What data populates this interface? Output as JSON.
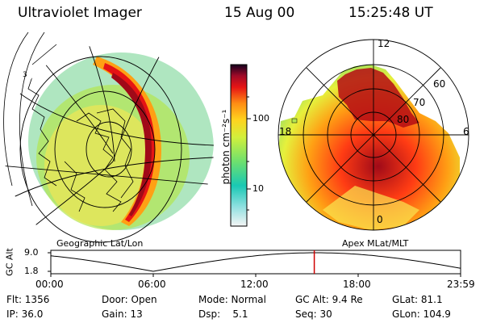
{
  "header": {
    "instrument": "Ultraviolet Imager",
    "date": "15 Aug 00",
    "time": "15:25:48 UT"
  },
  "colorbar": {
    "unit_label": "photon cm⁻²s⁻¹",
    "ticks": [
      "100",
      "10"
    ]
  },
  "polar_plot": {
    "mlt_labels": [
      "12",
      "18",
      "6",
      "0"
    ],
    "mlat_labels": [
      "60",
      "70",
      "80"
    ]
  },
  "left_map": {
    "caption": "Geographic Lat/Lon"
  },
  "right_map": {
    "caption": "Apex MLat/MLT"
  },
  "altitude_plot": {
    "ylabel": "GC Alt",
    "yticks": [
      "9.0",
      "1.8"
    ],
    "xticks": [
      "00:00",
      "06:00",
      "12:00",
      "18:00",
      "23:59"
    ],
    "current_time_hours": 15.43
  },
  "info": {
    "flt": "Flt: 1356",
    "ip": "IP: 36.0",
    "door": "Door: Open",
    "gain": "Gain: 13",
    "mode": "Mode: Normal",
    "dsp": "Dsp:    5.1",
    "gcalt": "GC Alt: 9.4 Re",
    "seq": "Seq: 30",
    "glat": "GLat: 81.1",
    "glon": "GLon: 104.9"
  }
}
